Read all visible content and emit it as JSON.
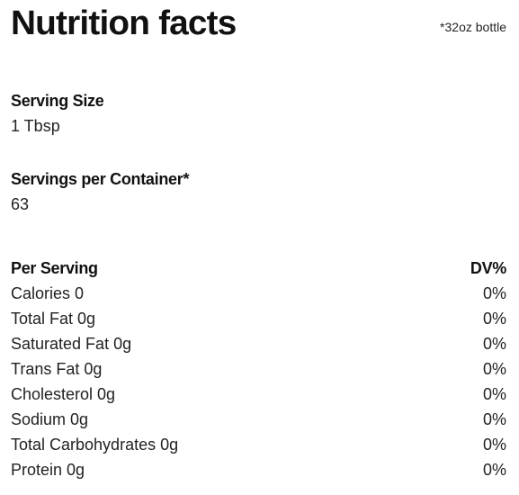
{
  "header": {
    "title": "Nutrition facts",
    "note": "*32oz bottle"
  },
  "serving_size": {
    "label": "Serving Size",
    "value": "1 Tbsp"
  },
  "servings_per_container": {
    "label": "Servings per Container*",
    "value": "63"
  },
  "table": {
    "header_left": "Per Serving",
    "header_right": "DV%",
    "rows": [
      {
        "name": "Calories 0",
        "dv": "0%"
      },
      {
        "name": "Total Fat 0g",
        "dv": "0%"
      },
      {
        "name": "Saturated Fat 0g",
        "dv": "0%"
      },
      {
        "name": "Trans Fat 0g",
        "dv": "0%"
      },
      {
        "name": "Cholesterol 0g",
        "dv": "0%"
      },
      {
        "name": "Sodium 0g",
        "dv": "0%"
      },
      {
        "name": "Total Carbohydrates 0g",
        "dv": "0%"
      },
      {
        "name": "Protein 0g",
        "dv": "0%"
      }
    ]
  }
}
